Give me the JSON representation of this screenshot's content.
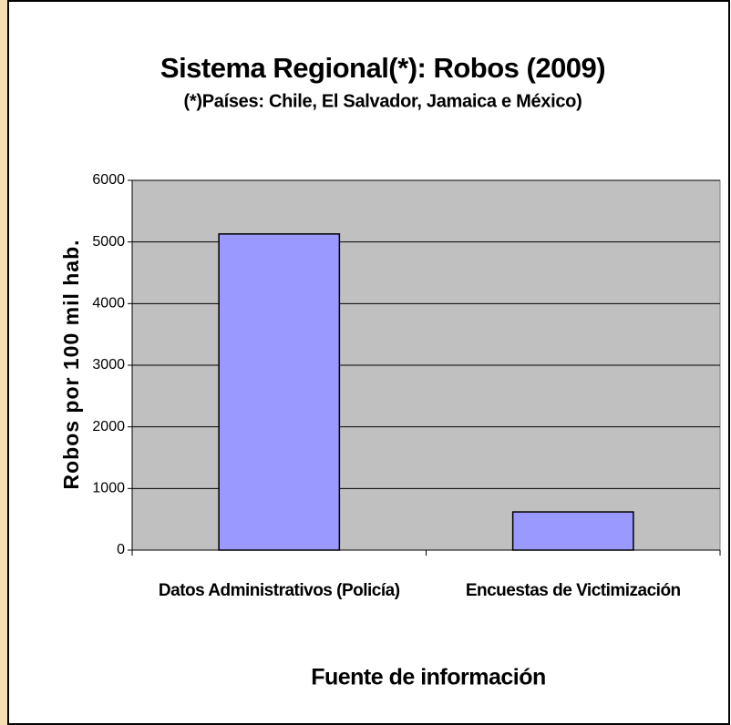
{
  "chart_data": {
    "type": "bar",
    "title": "Sistema Regional(*): Robos (2009)",
    "subtitle": "(*)Países: Chile, El Salvador, Jamaica e México)",
    "y_label": "Robos por 100 mil hab.",
    "x_label": "Fuente de información",
    "categories": [
      "Datos Administrativos (Policía)",
      "Encuestas de Victimización"
    ],
    "values": [
      5130,
      620
    ],
    "color": "#9999ff",
    "ylim": [
      0,
      6000
    ],
    "yticks": [
      0,
      1000,
      2000,
      3000,
      4000,
      5000,
      6000
    ],
    "grid": true
  }
}
